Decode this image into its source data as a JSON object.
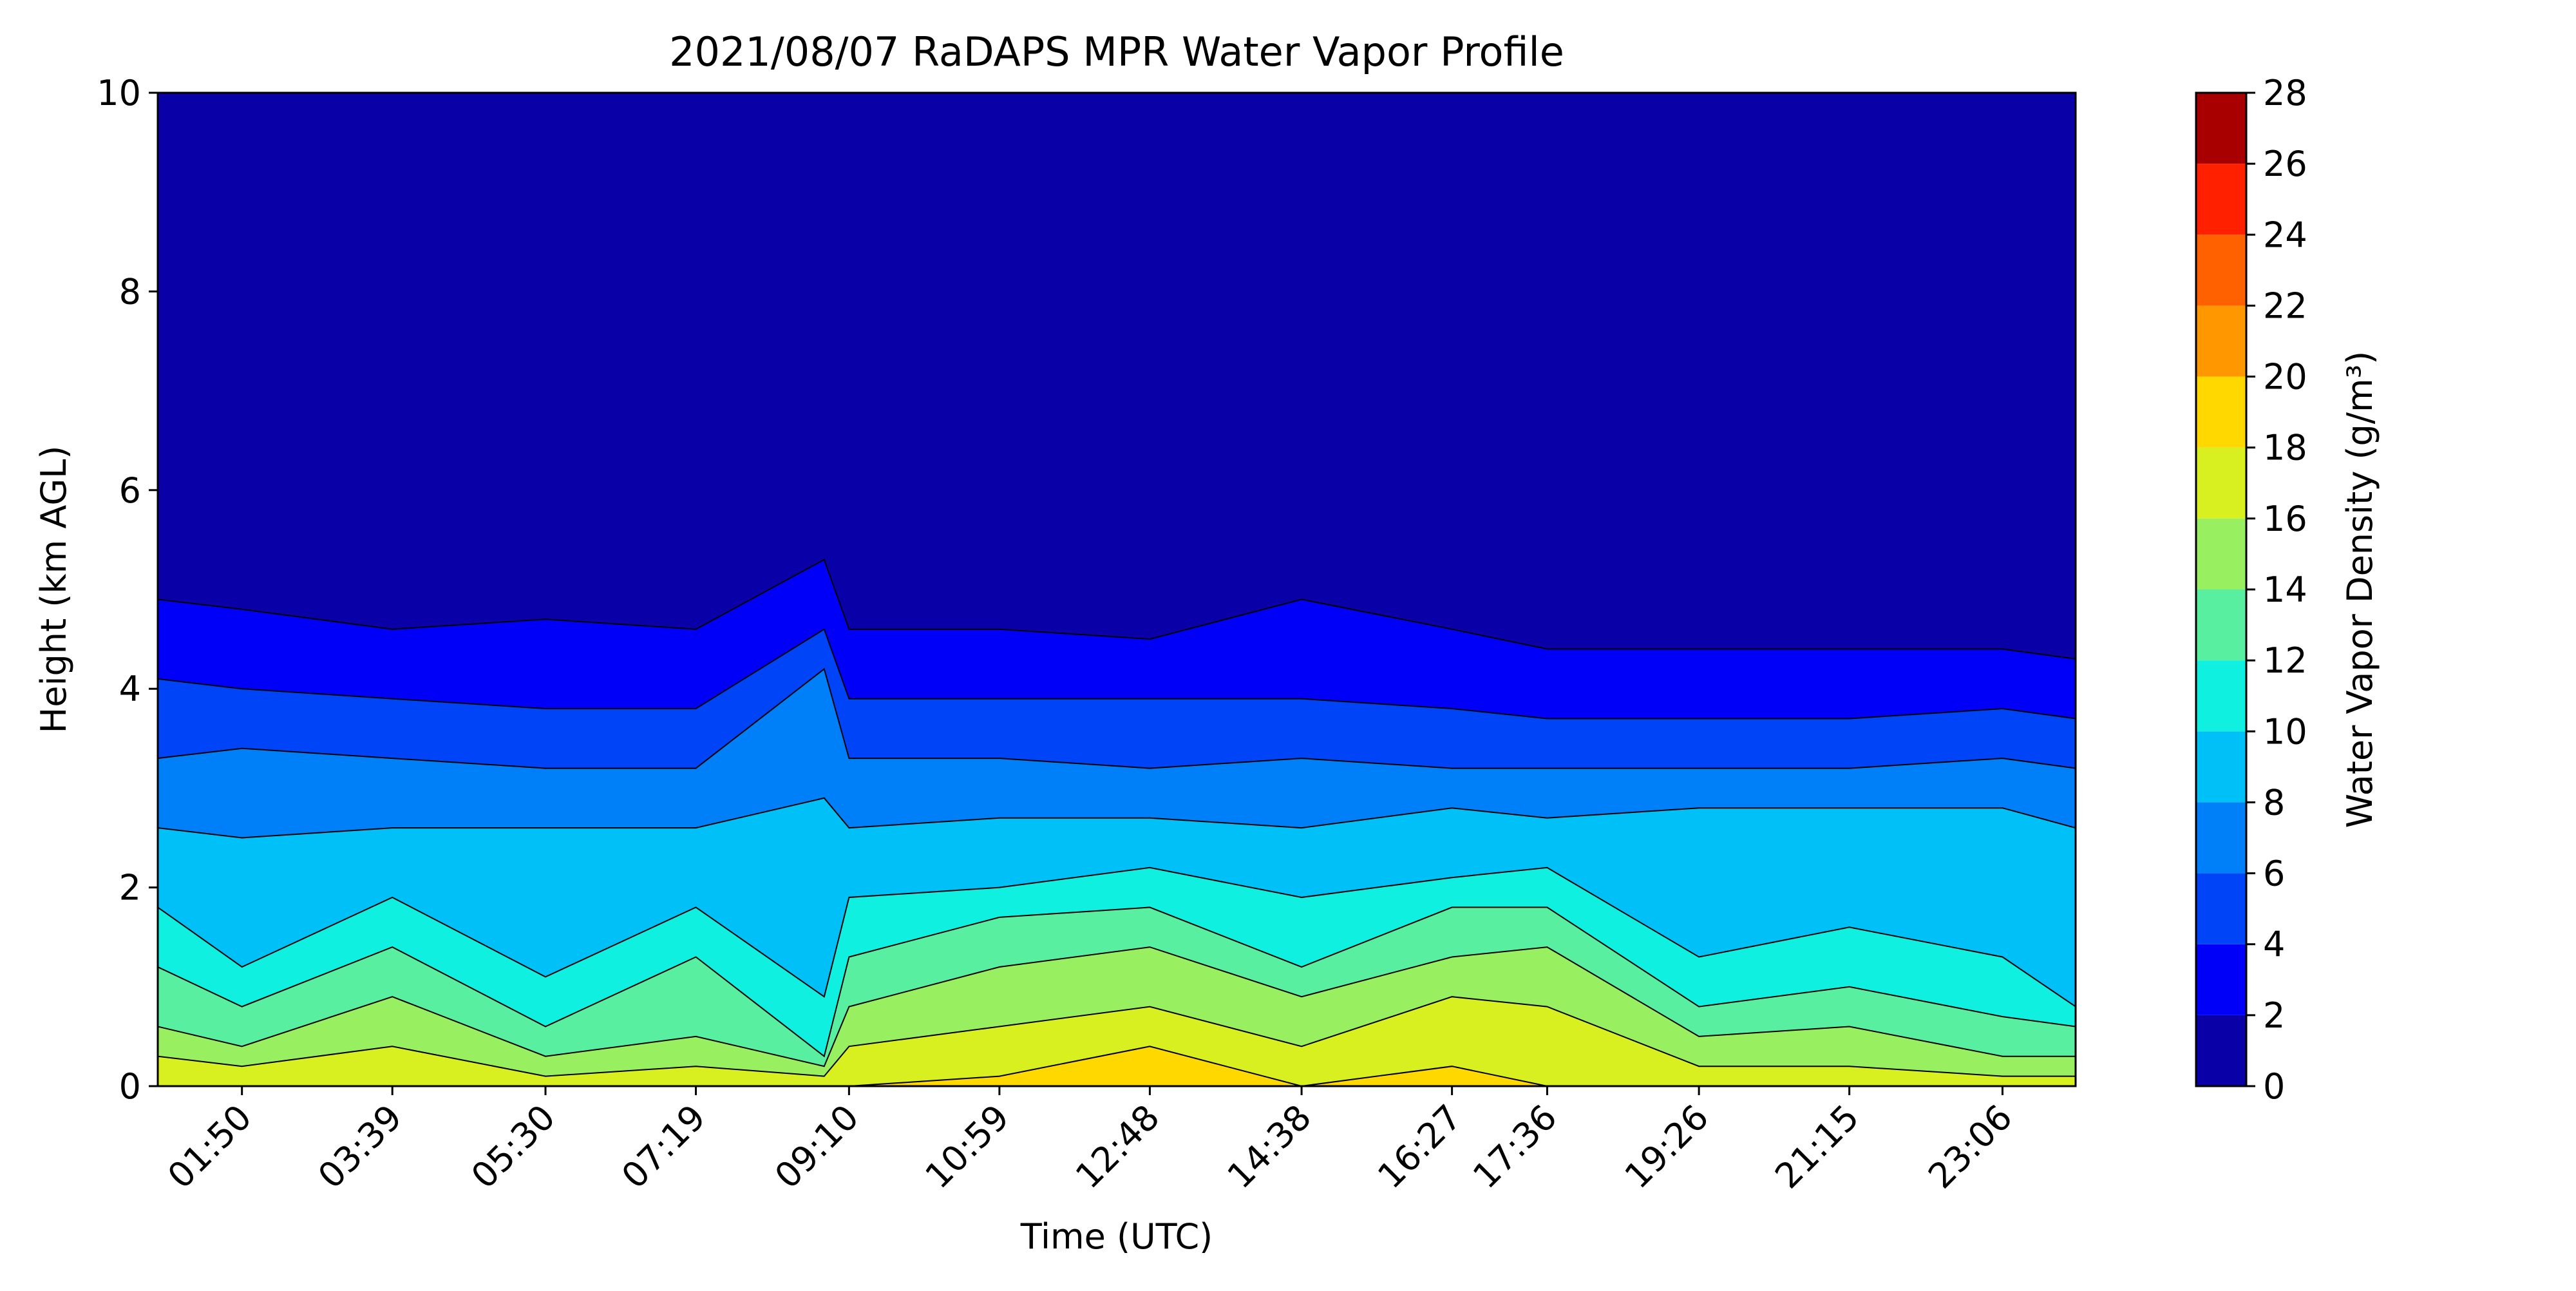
{
  "chart_data": {
    "type": "heatmap",
    "subtype": "filled-contour",
    "title": "2021/08/07 RaDAPS MPR Water Vapor Profile",
    "xlabel": "Time (UTC)",
    "ylabel": "Height (km AGL)",
    "xlim": [
      "00:49",
      "23:59"
    ],
    "ylim": [
      0,
      10
    ],
    "x_ticks": [
      "01:50",
      "03:39",
      "05:30",
      "07:19",
      "09:10",
      "10:59",
      "12:48",
      "14:38",
      "16:27",
      "17:36",
      "19:26",
      "21:15",
      "23:06"
    ],
    "y_ticks": [
      0,
      2,
      4,
      6,
      8,
      10
    ],
    "grid": false,
    "colorbar": {
      "label": "Water Vapor Density (g/m³)",
      "levels": [
        0,
        2,
        4,
        6,
        8,
        10,
        12,
        14,
        16,
        18,
        20,
        22,
        24,
        26,
        28
      ],
      "colors": [
        "#0a00a8",
        "#0000f8",
        "#0044f8",
        "#0080f8",
        "#00c0f8",
        "#10f0e0",
        "#58f0a0",
        "#98f060",
        "#d8f020",
        "#ffd800",
        "#ff9800",
        "#ff6000",
        "#ff2000",
        "#a80000"
      ]
    },
    "contour_levels_km": {
      "time": [
        "00:49",
        "01:50",
        "03:39",
        "05:30",
        "07:19",
        "08:52",
        "09:10",
        "10:59",
        "12:48",
        "14:38",
        "16:27",
        "17:36",
        "19:26",
        "21:15",
        "23:06",
        "23:59"
      ],
      "2": [
        4.9,
        4.8,
        4.6,
        4.7,
        4.6,
        5.3,
        4.6,
        4.6,
        4.5,
        4.9,
        4.6,
        4.4,
        4.4,
        4.4,
        4.4,
        4.3
      ],
      "4": [
        4.1,
        4.0,
        3.9,
        3.8,
        3.8,
        4.6,
        3.9,
        3.9,
        3.9,
        3.9,
        3.8,
        3.7,
        3.7,
        3.7,
        3.8,
        3.7
      ],
      "6": [
        3.3,
        3.4,
        3.3,
        3.2,
        3.2,
        4.2,
        3.3,
        3.3,
        3.2,
        3.3,
        3.2,
        3.2,
        3.2,
        3.2,
        3.3,
        3.2
      ],
      "8": [
        2.6,
        2.5,
        2.6,
        2.6,
        2.6,
        2.9,
        2.6,
        2.7,
        2.7,
        2.6,
        2.8,
        2.7,
        2.8,
        2.8,
        2.8,
        2.6
      ],
      "10": [
        1.8,
        1.2,
        1.9,
        1.1,
        1.8,
        0.9,
        1.9,
        2.0,
        2.2,
        1.9,
        2.1,
        2.2,
        1.3,
        1.6,
        1.3,
        0.8
      ],
      "12": [
        1.2,
        0.8,
        1.4,
        0.6,
        1.3,
        0.3,
        1.3,
        1.7,
        1.8,
        1.2,
        1.8,
        1.8,
        0.8,
        1.0,
        0.7,
        0.6
      ],
      "14": [
        0.6,
        0.4,
        0.9,
        0.3,
        0.5,
        0.2,
        0.8,
        1.2,
        1.4,
        0.9,
        1.3,
        1.4,
        0.5,
        0.6,
        0.3,
        0.3
      ],
      "16": [
        0.3,
        0.2,
        0.4,
        0.1,
        0.2,
        0.1,
        0.4,
        0.6,
        0.8,
        0.4,
        0.9,
        0.8,
        0.2,
        0.2,
        0.1,
        0.1
      ],
      "18": [
        0,
        0,
        0,
        0,
        0,
        0,
        0,
        0.1,
        0.4,
        0,
        0.2,
        0,
        0,
        0,
        0,
        0
      ]
    }
  }
}
